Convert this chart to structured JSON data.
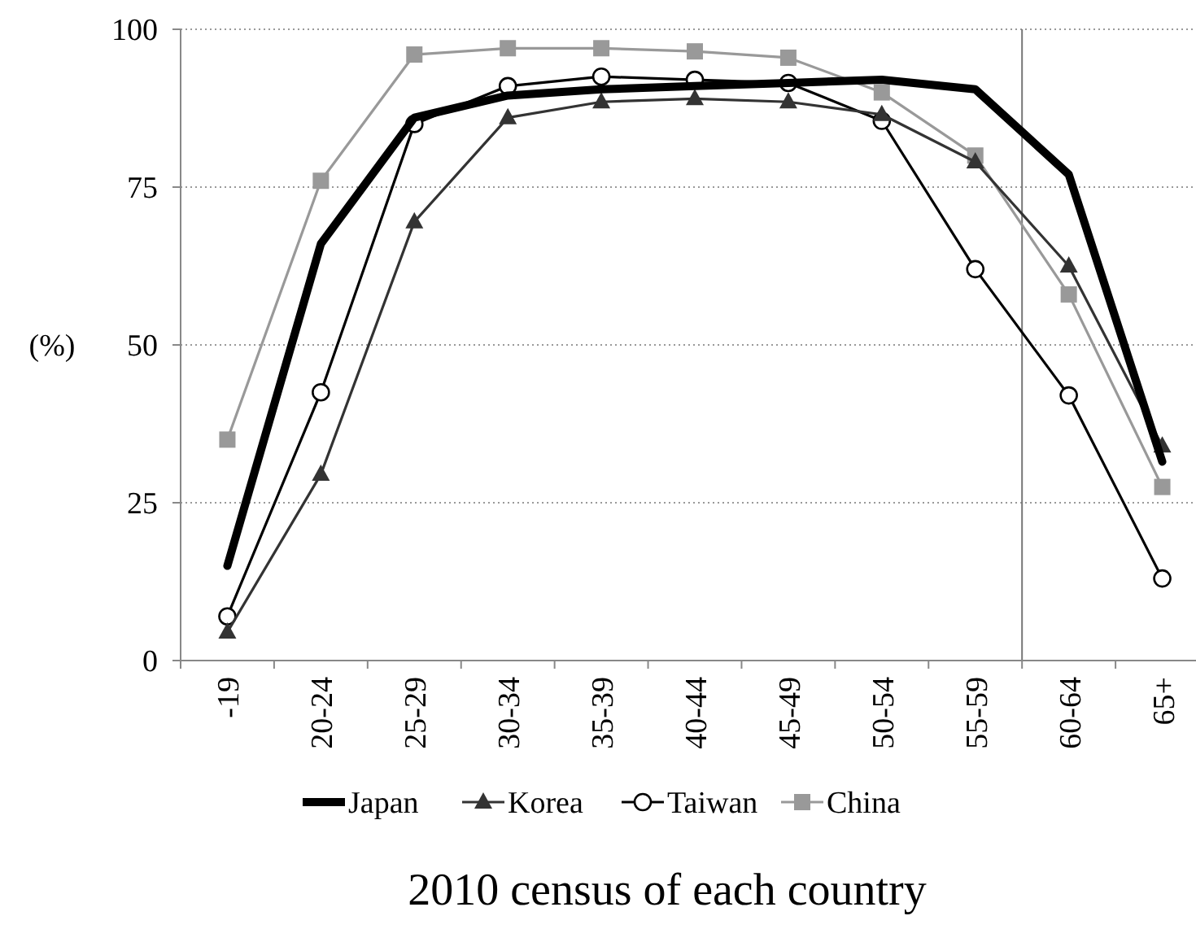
{
  "chart_data": {
    "type": "line",
    "title": "2010 census of each country",
    "ylabel": "(%)",
    "categories": [
      "-19",
      "20-24",
      "25-29",
      "30-34",
      "35-39",
      "40-44",
      "45-49",
      "50-54",
      "55-59",
      "60-64",
      "65+"
    ],
    "series": [
      {
        "name": "Japan",
        "color": "#000000",
        "marker": "none",
        "values": [
          15,
          66,
          86,
          89.5,
          90.5,
          91,
          91.5,
          92,
          90.5,
          77,
          31.5
        ]
      },
      {
        "name": "Korea",
        "color": "#333333",
        "marker": "triangle",
        "values": [
          4.5,
          29.5,
          69.5,
          86,
          88.5,
          89,
          88.5,
          86.5,
          79,
          62.5,
          34
        ]
      },
      {
        "name": "Taiwan",
        "color": "#000000",
        "marker": "circle",
        "values": [
          7,
          42.5,
          85,
          91,
          92.5,
          92,
          91.5,
          85.5,
          62,
          42,
          13
        ]
      },
      {
        "name": "China",
        "color": "#999999",
        "marker": "square",
        "values": [
          35,
          76,
          96,
          97,
          97,
          96.5,
          95.5,
          90,
          80,
          58,
          27.5
        ]
      }
    ],
    "ylim": [
      0,
      100
    ],
    "yticks": [
      0,
      25,
      50,
      75,
      100
    ],
    "grid": "y",
    "legend": "bottom",
    "ref_lines": [
      {
        "axis": "x",
        "value": "60-64",
        "color": "#777777"
      }
    ]
  }
}
